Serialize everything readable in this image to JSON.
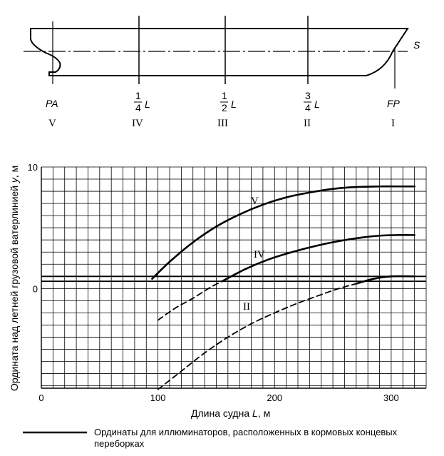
{
  "ship_diagram": {
    "station_marks": [
      "PA",
      "1",
      "4",
      "L",
      "1",
      "2",
      "L",
      "3",
      "4",
      "L",
      "FP"
    ],
    "stations": [
      {
        "top_num": "",
        "top_den": "",
        "top_label": "PA",
        "roman": "V"
      },
      {
        "top_num": "1",
        "top_den": "4",
        "top_label": "L",
        "roman": "IV"
      },
      {
        "top_num": "1",
        "top_den": "2",
        "top_label": "L",
        "roman": "III"
      },
      {
        "top_num": "3",
        "top_den": "4",
        "top_label": "L",
        "roman": "II"
      },
      {
        "top_num": "",
        "top_den": "",
        "top_label": "FP",
        "roman": "I"
      }
    ],
    "waterline_label": "S"
  },
  "chart_data": {
    "type": "line",
    "xlabel_prefix": "Длина судна ",
    "xlabel_var": "L",
    "xlabel_suffix": ", м",
    "ylabel_prefix": "Ордината над летней грузовой ватерлинией ",
    "ylabel_var": "y",
    "ylabel_suffix": ", м",
    "xlim": [
      0,
      330
    ],
    "ylim": [
      -8.2,
      10
    ],
    "x_ticks": [
      0,
      100,
      200,
      300
    ],
    "y_ticks": [
      0,
      10
    ],
    "grid": true,
    "baseline_y": [
      0.6,
      1.0
    ],
    "series": [
      {
        "name": "V",
        "style": "solid",
        "x": [
          95,
          110,
          130,
          150,
          170,
          190,
          210,
          230,
          250,
          270,
          290,
          305,
          320
        ],
        "y": [
          0.8,
          2.2,
          3.8,
          5.1,
          6.1,
          6.9,
          7.5,
          7.9,
          8.2,
          8.35,
          8.4,
          8.4,
          8.4
        ]
      },
      {
        "name": "IV",
        "style": "dashed",
        "x": [
          100,
          115,
          130,
          145,
          155
        ],
        "y": [
          -2.6,
          -1.6,
          -0.8,
          0.1,
          0.6
        ]
      },
      {
        "name": "IV",
        "style": "solid",
        "x": [
          155,
          175,
          195,
          215,
          235,
          255,
          275,
          290,
          305,
          320
        ],
        "y": [
          0.6,
          1.6,
          2.4,
          3.0,
          3.5,
          3.9,
          4.2,
          4.35,
          4.4,
          4.4
        ]
      },
      {
        "name": "II",
        "style": "dashed",
        "x": [
          100,
          120,
          140,
          160,
          180,
          200,
          220,
          240,
          255,
          270
        ],
        "y": [
          -8.3,
          -6.8,
          -5.3,
          -4.0,
          -2.9,
          -2.0,
          -1.2,
          -0.5,
          0.0,
          0.4
        ]
      },
      {
        "name": "II",
        "style": "solid",
        "x": [
          270,
          285,
          300,
          320
        ],
        "y": [
          0.4,
          0.8,
          1.0,
          1.0
        ]
      }
    ],
    "curve_labels": [
      "V",
      "IV",
      "II"
    ],
    "legend": "Ординаты для иллюминаторов, расположенных в кормовых концевых переборках"
  }
}
